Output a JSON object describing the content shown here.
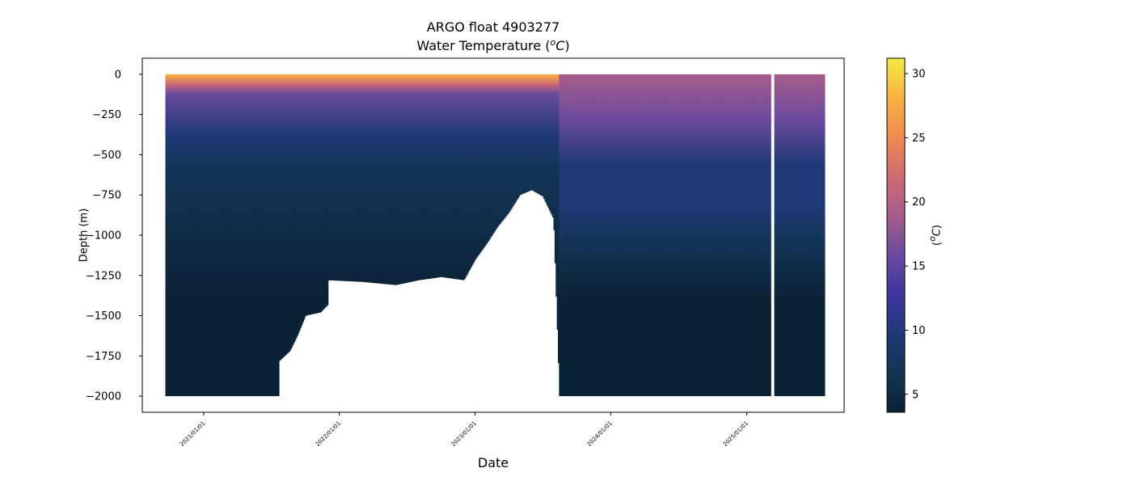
{
  "chart_data": {
    "type": "heatmap",
    "title": "ARGO float 4903277",
    "subtitle": {
      "prefix": "Water Temperature (",
      "sup": "o",
      "unit": "C",
      "suffix": ")"
    },
    "xlabel": "Date",
    "ylabel": "Depth (m)",
    "colorbar": {
      "label": {
        "prefix": "(",
        "sup": "o",
        "unit": "C",
        "suffix": ")"
      },
      "range": [
        3.6,
        31.2
      ],
      "ticks": [
        5,
        10,
        15,
        20,
        25,
        30
      ],
      "colors": [
        "#0a2235",
        "#123454",
        "#1f3a77",
        "#3d35a0",
        "#6b4a9e",
        "#a75c8b",
        "#d06b73",
        "#f08a52",
        "#f9b23d",
        "#f2ea45"
      ]
    },
    "x_range": [
      "2020-07-20",
      "2025-09-20"
    ],
    "x_ticks": [
      "2021/01/01",
      "2022/01/01",
      "2023/01/01",
      "2024/01/01",
      "2025/01/01"
    ],
    "x_tick_dates": [
      "2021-01-01",
      "2022-01-01",
      "2023-01-01",
      "2024-01-01",
      "2025-01-01"
    ],
    "y_range": [
      -2100,
      100
    ],
    "y_ticks": [
      0,
      -250,
      -500,
      -750,
      -1000,
      -1250,
      -1500,
      -1750,
      -2000
    ],
    "data_start": "2020-09-20",
    "data_end": "2025-07-30",
    "gap": [
      "2025-03-07",
      "2025-03-14"
    ],
    "max_depth_profile": [
      {
        "date": "2020-09-20",
        "depth": -2000
      },
      {
        "date": "2021-07-20",
        "depth": -2000
      },
      {
        "date": "2021-07-23",
        "depth": -1780
      },
      {
        "date": "2021-08-20",
        "depth": -1720
      },
      {
        "date": "2021-09-10",
        "depth": -1620
      },
      {
        "date": "2021-10-01",
        "depth": -1500
      },
      {
        "date": "2021-11-10",
        "depth": -1480
      },
      {
        "date": "2021-12-01",
        "depth": -1430
      },
      {
        "date": "2021-12-02",
        "depth": -1280
      },
      {
        "date": "2022-03-01",
        "depth": -1290
      },
      {
        "date": "2022-06-01",
        "depth": -1310
      },
      {
        "date": "2022-08-01",
        "depth": -1280
      },
      {
        "date": "2022-10-01",
        "depth": -1260
      },
      {
        "date": "2022-12-01",
        "depth": -1280
      },
      {
        "date": "2023-01-01",
        "depth": -1150
      },
      {
        "date": "2023-02-01",
        "depth": -1050
      },
      {
        "date": "2023-03-01",
        "depth": -950
      },
      {
        "date": "2023-04-01",
        "depth": -860
      },
      {
        "date": "2023-05-01",
        "depth": -750
      },
      {
        "date": "2023-06-01",
        "depth": -720
      },
      {
        "date": "2023-07-01",
        "depth": -760
      },
      {
        "date": "2023-07-30",
        "depth": -900
      },
      {
        "date": "2023-08-15",
        "depth": -2000
      },
      {
        "date": "2025-07-30",
        "depth": -2000
      }
    ],
    "thermocline_depth": [
      {
        "date": "2020-09-20",
        "depth": -120
      },
      {
        "date": "2023-08-15",
        "depth": -150
      },
      {
        "date": "2023-08-20",
        "depth": -550
      },
      {
        "date": "2025-07-30",
        "depth": -600
      }
    ]
  }
}
